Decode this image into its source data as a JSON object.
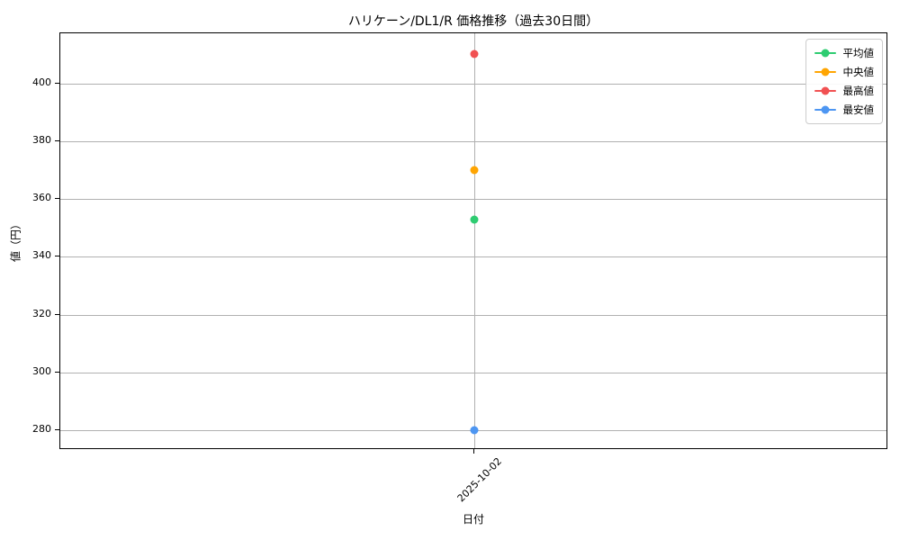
{
  "chart_data": {
    "type": "line",
    "title": "ハリケーン/DL1/R 価格推移（過去30日間）",
    "xlabel": "日付",
    "ylabel": "値（円）",
    "x": [
      "2025-10-02"
    ],
    "series": [
      {
        "key": "average",
        "name": "平均値",
        "color": "#2ecc71",
        "values": [
          353
        ]
      },
      {
        "key": "median",
        "name": "中央値",
        "color": "#ffa502",
        "values": [
          370
        ]
      },
      {
        "key": "max",
        "name": "最高値",
        "color": "#f15152",
        "values": [
          410
        ]
      },
      {
        "key": "min",
        "name": "最安値",
        "color": "#4d96f2",
        "values": [
          280
        ]
      }
    ],
    "yticks": [
      280,
      300,
      320,
      340,
      360,
      380,
      400
    ],
    "ylim": [
      273.2,
      417.3
    ],
    "grid": true,
    "grid_color": "#b0b0b0",
    "axis_color": "#000000",
    "background": "#ffffff",
    "legend_position": "top-right",
    "marker": "circle"
  }
}
